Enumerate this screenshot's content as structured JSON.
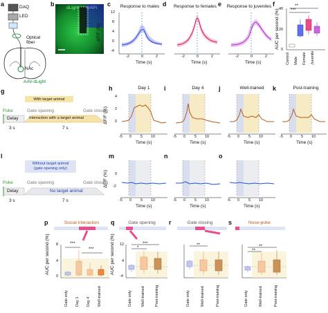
{
  "panel_letters": {
    "a": "a",
    "b": "b",
    "c": "c",
    "d": "d",
    "e": "e",
    "f": "f",
    "g": "g",
    "h": "h",
    "i": "i",
    "j": "j",
    "k": "k",
    "l": "l",
    "m": "m",
    "n": "n",
    "o": "o",
    "p": "p",
    "q": "q",
    "r": "r",
    "s": "s"
  },
  "a": {
    "daq": "DAQ",
    "led": "LED",
    "fiber": "Optical fiber",
    "nac": "NAc",
    "sensor": "AAV-dLight"
  },
  "b": {
    "title": "dLight",
    "dapi": "DAPI"
  },
  "top_titles": {
    "c": "Response to males",
    "d": "Response to females",
    "e": "Response to juveniles"
  },
  "labels": {
    "dff": "ΔF/F (%)",
    "time": "Time (s)",
    "auc": "AUC per second (%)",
    "day1": "Day 1",
    "day4": "Day 4",
    "well": "Well-trained",
    "post": "Post-training"
  },
  "f_categories": [
    "Control",
    "Male",
    "Female",
    "Juvenile"
  ],
  "f_stars": [
    "**",
    "***"
  ],
  "g": {
    "header": "With target animal",
    "poke": "Poke",
    "gate_open": "Gate opening",
    "gate_close": "Gate closing",
    "delay": "Delay",
    "interaction": "Interaction with a target animal",
    "t1": "3 s",
    "t2": "7 s"
  },
  "l": {
    "header1": "Without target animal",
    "header2": "(gate opening only)",
    "poke": "Poke",
    "gate_open": "Gate opening",
    "gate_close": "Gate closing",
    "delay": "Delay",
    "no_target": "No target animal",
    "t1": "3 s",
    "t2": "7 s"
  },
  "bottom_titles": {
    "p": "Social interaction",
    "q": "Gate opening",
    "r": "Gate closing",
    "s": "Nose-poke"
  },
  "p_categories": [
    "Gate only",
    "Day 1",
    "Day 4",
    "Well-trained"
  ],
  "qrs_categories": [
    "Gate only",
    "Well-trained",
    "Post-training"
  ],
  "p_stars": [
    "***",
    "***"
  ],
  "q_stars": [
    "***",
    "*"
  ],
  "r_stars": [
    "**"
  ],
  "s_stars": [
    "**",
    "**"
  ],
  "ticks": {
    "t_full": [
      "-5",
      "0",
      "5",
      "10"
    ],
    "t_short": [
      "-2",
      "0",
      "2"
    ],
    "dff_top": [
      "-4",
      "0",
      "4",
      "8",
      "12"
    ],
    "dff_h": [
      "0",
      "2",
      "4"
    ],
    "dff_h_low": [
      "-2",
      "0"
    ],
    "auc_f": [
      "0",
      "10",
      "20",
      "30",
      "40"
    ],
    "auc_p": [
      "0",
      "2",
      "4",
      "6",
      "8"
    ],
    "auc_q": [
      "-4",
      "0",
      "4",
      "8",
      "12"
    ]
  },
  "colors": {
    "male": "#3b4bd6",
    "female": "#d6276a",
    "juvenile": "#b135c4",
    "trace_h": "#b45a1a",
    "trace_m": "#1e4fd6",
    "gate": "#cfd6ea",
    "interact": "#f5e6b8",
    "arrow": "#e94f8c"
  }
}
